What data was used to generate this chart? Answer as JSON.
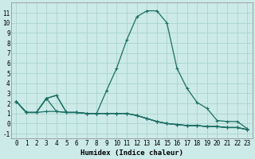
{
  "xlabel": "Humidex (Indice chaleur)",
  "bg_color": "#cceae7",
  "grid_color": "#aad4d0",
  "line_color": "#1a6e64",
  "xlim": [
    -0.5,
    23.5
  ],
  "ylim": [
    -1.5,
    12.0
  ],
  "xticks": [
    0,
    1,
    2,
    3,
    4,
    5,
    6,
    7,
    8,
    9,
    10,
    11,
    12,
    13,
    14,
    15,
    16,
    17,
    18,
    19,
    20,
    21,
    22,
    23
  ],
  "yticks": [
    -1,
    0,
    1,
    2,
    3,
    4,
    5,
    6,
    7,
    8,
    9,
    10,
    11
  ],
  "series": [
    [
      2.2,
      1.1,
      1.1,
      2.5,
      2.8,
      1.1,
      1.1,
      1.0,
      1.0,
      3.3,
      5.5,
      8.3,
      10.6,
      11.2,
      11.2,
      10.0,
      5.5,
      3.5,
      2.1,
      1.5,
      0.3,
      0.2,
      0.2,
      -0.5
    ],
    [
      2.2,
      1.1,
      1.1,
      1.2,
      1.2,
      1.1,
      1.1,
      1.0,
      1.0,
      1.0,
      1.0,
      1.0,
      0.8,
      0.5,
      0.2,
      0.0,
      -0.1,
      -0.2,
      -0.2,
      -0.3,
      -0.3,
      -0.4,
      -0.4,
      -0.6
    ],
    [
      2.2,
      1.1,
      1.1,
      2.5,
      1.2,
      1.1,
      1.1,
      1.0,
      1.0,
      1.0,
      1.0,
      1.0,
      0.8,
      0.5,
      0.2,
      0.0,
      -0.1,
      -0.2,
      -0.2,
      -0.3,
      -0.3,
      -0.4,
      -0.4,
      -0.6
    ],
    [
      2.2,
      1.1,
      1.1,
      2.5,
      2.8,
      1.1,
      1.1,
      1.0,
      1.0,
      1.0,
      1.0,
      1.0,
      0.8,
      0.5,
      0.2,
      0.0,
      -0.1,
      -0.2,
      -0.2,
      -0.3,
      -0.3,
      -0.4,
      -0.4,
      -0.6
    ]
  ],
  "tick_fontsize": 5.5,
  "xlabel_fontsize": 6.5,
  "marker": "+",
  "markersize": 3,
  "linewidth": 0.9
}
